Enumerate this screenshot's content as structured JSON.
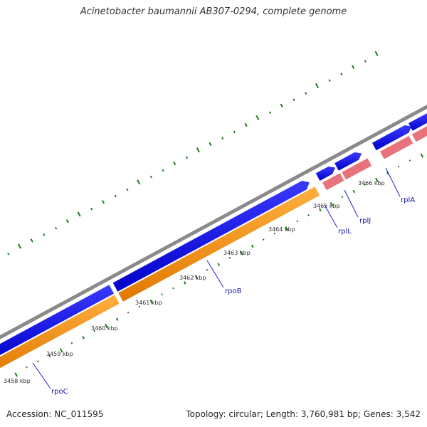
{
  "title": "Acinetobacter baumannii AB307-0294, complete genome",
  "footer": {
    "accession": "Accession: NC_011595",
    "topology": "Topology: circular; Length: 3,760,981 bp; Genes: 3,542"
  },
  "ruler": [
    "3458 kbp",
    "3459 kbp",
    "3460 kbp",
    "3461 kbp",
    "3462 kbp",
    "3463 kbp",
    "3464 kbp",
    "3465 kbp",
    "3466 kbp"
  ],
  "genes": [
    "rpoC",
    "rpoB",
    "rplL",
    "rplJ",
    "rplA"
  ],
  "colors": {
    "backbone": "#8a8a8a",
    "cds_forward": "#0a0aeb",
    "cds_reverse": "#ff9a05",
    "rna_or_other": "#e8727c",
    "gc_ticks": "#1e7a1e",
    "label_line": "#1f1fd6",
    "label_text": "#1515b0"
  }
}
